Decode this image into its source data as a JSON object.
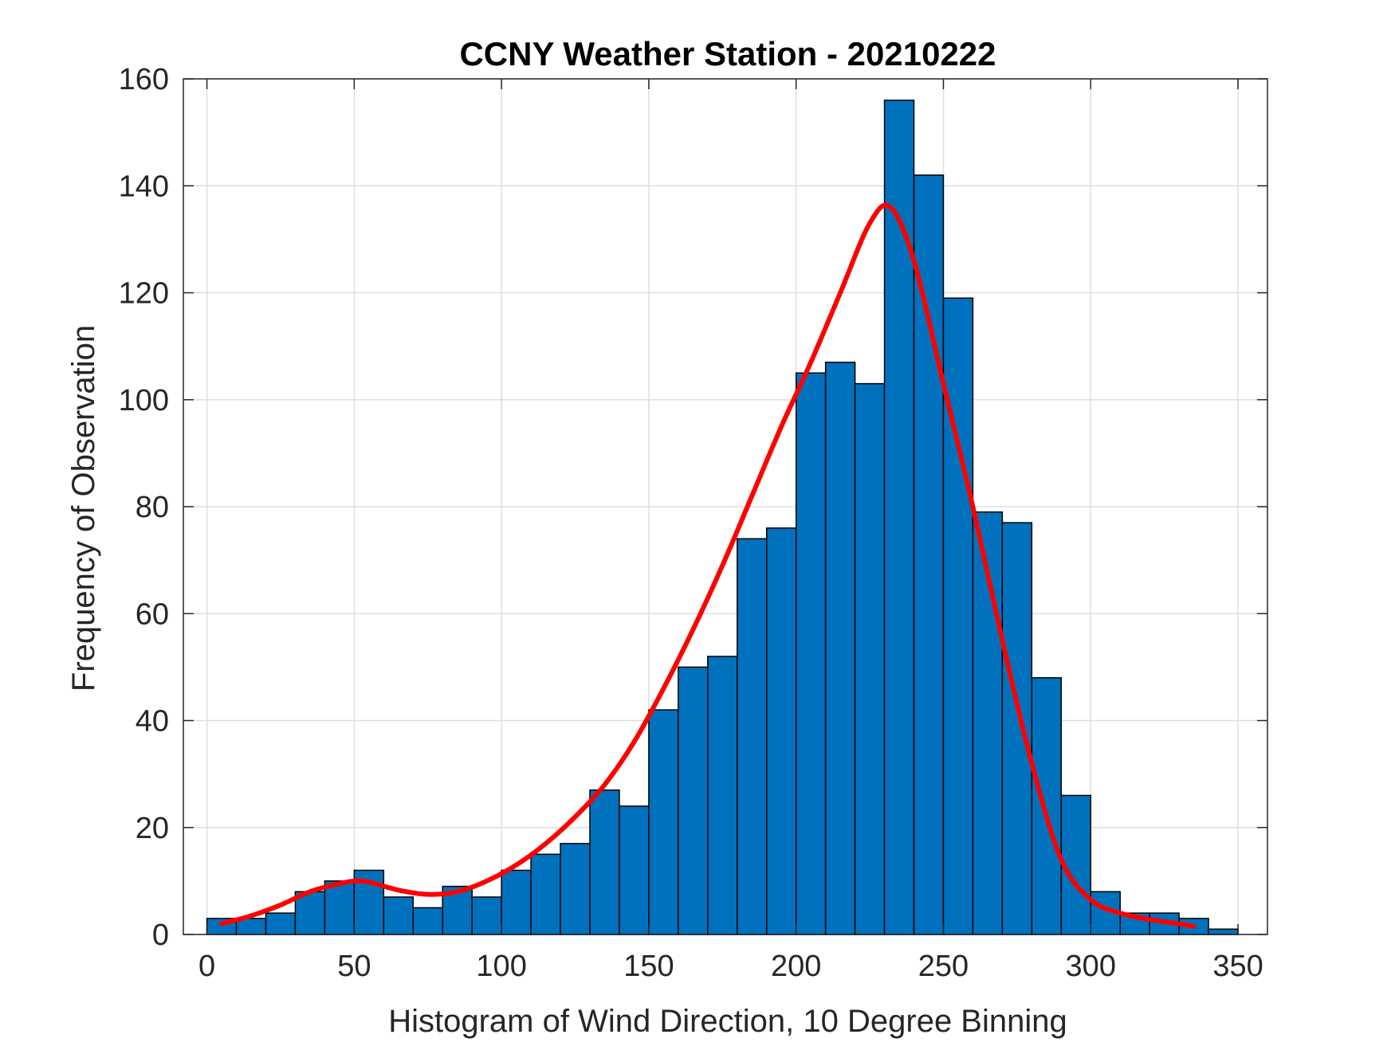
{
  "chart_data": {
    "type": "bar",
    "title": "CCNY Weather Station - 20210222",
    "xlabel": "Histogram of Wind Direction, 10 Degree Binning",
    "ylabel": "Frequency of Observation",
    "xlim": [
      -8,
      360
    ],
    "ylim": [
      0,
      160
    ],
    "xticks": [
      0,
      50,
      100,
      150,
      200,
      250,
      300,
      350
    ],
    "yticks": [
      0,
      20,
      40,
      60,
      80,
      100,
      120,
      140,
      160
    ],
    "grid": true,
    "bin_width": 10,
    "bin_edges": [
      0,
      10,
      20,
      30,
      40,
      50,
      60,
      70,
      80,
      90,
      100,
      110,
      120,
      130,
      140,
      150,
      160,
      170,
      180,
      190,
      200,
      210,
      220,
      230,
      240,
      250,
      260,
      270,
      280,
      290,
      300,
      310,
      320,
      330,
      340,
      350
    ],
    "values": [
      3,
      3,
      4,
      8,
      10,
      12,
      7,
      5,
      9,
      7,
      12,
      15,
      17,
      27,
      24,
      42,
      50,
      52,
      74,
      76,
      105,
      107,
      103,
      156,
      142,
      119,
      79,
      77,
      48,
      26,
      8,
      4,
      4,
      3,
      1
    ],
    "fit_curve": {
      "x": [
        5,
        15,
        25,
        35,
        45,
        50,
        55,
        65,
        75,
        85,
        95,
        105,
        115,
        125,
        135,
        145,
        155,
        165,
        175,
        185,
        195,
        205,
        215,
        225,
        232,
        240,
        250,
        260,
        270,
        280,
        290,
        300,
        310,
        320,
        330,
        335
      ],
      "y": [
        2,
        3.5,
        5.5,
        8,
        9.5,
        10,
        9.8,
        8.3,
        7.5,
        8,
        10,
        13,
        17,
        22,
        28,
        36,
        46,
        57,
        69,
        82,
        95,
        107,
        120,
        133,
        136,
        126,
        103,
        80,
        55,
        32,
        14,
        6.5,
        4,
        2.8,
        2,
        1.5
      ]
    },
    "colors": {
      "bar_fill": "#0072BD",
      "bar_edge": "#000000",
      "fit_line": "#FF0000",
      "grid": "#DFDFDF",
      "axes": "#262626"
    }
  }
}
